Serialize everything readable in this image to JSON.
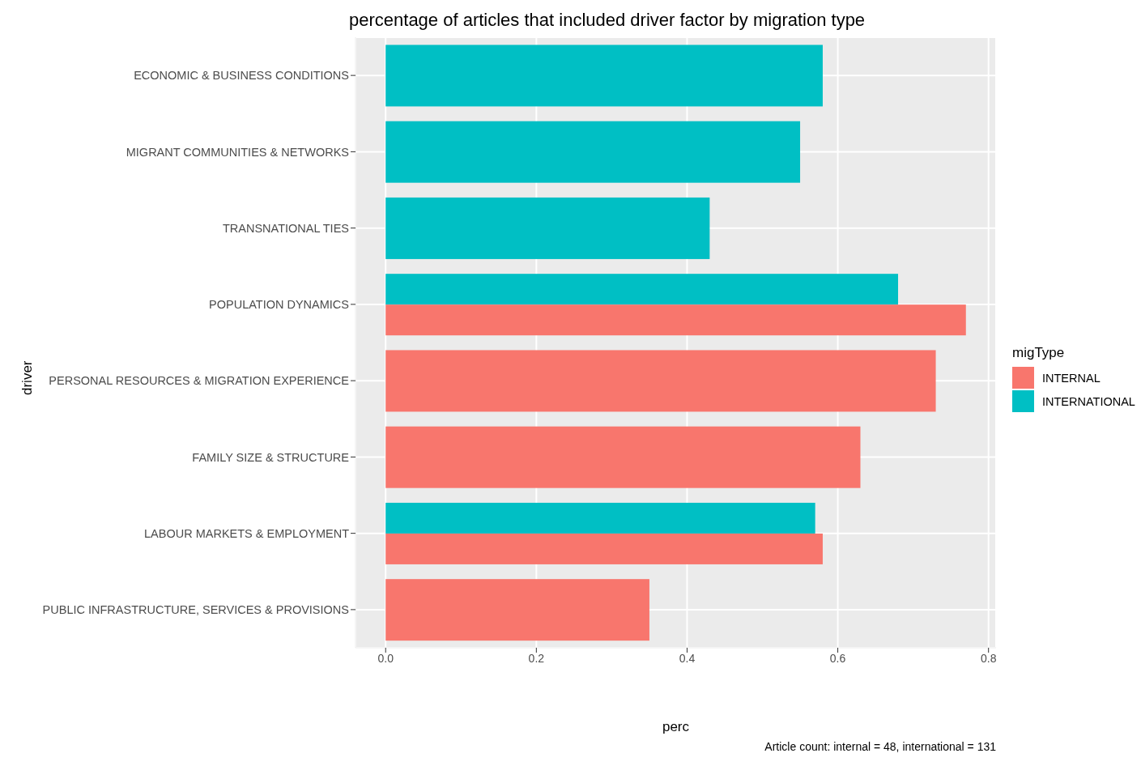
{
  "chart_data": {
    "type": "bar",
    "orientation": "horizontal",
    "title": "percentage of articles that included driver factor by migration type",
    "xlabel": "perc",
    "ylabel": "driver",
    "legend_title": "migType",
    "legend": "right",
    "categories": [
      "ECONOMIC & BUSINESS CONDITIONS",
      "MIGRANT COMMUNITIES & NETWORKS",
      "TRANSNATIONAL TIES",
      "POPULATION DYNAMICS",
      "PERSONAL RESOURCES & MIGRATION EXPERIENCE",
      "FAMILY SIZE & STRUCTURE",
      "LABOUR MARKETS & EMPLOYMENT",
      "PUBLIC INFRASTRUCTURE, SERVICES & PROVISIONS"
    ],
    "series": [
      {
        "name": "INTERNAL",
        "color": "#f8766d",
        "values": [
          null,
          null,
          null,
          0.77,
          0.73,
          0.63,
          0.58,
          0.35
        ]
      },
      {
        "name": "INTERNATIONAL",
        "color": "#00bfc4",
        "values": [
          0.58,
          0.55,
          0.43,
          0.68,
          null,
          null,
          0.57,
          null
        ]
      }
    ],
    "xlim": [
      -0.04,
      0.81
    ],
    "xticks": [
      {
        "value": 0,
        "label": "0.0"
      },
      {
        "value": 0.2,
        "label": "0.2"
      },
      {
        "value": 0.4,
        "label": "0.4"
      },
      {
        "value": 0.6,
        "label": "0.6"
      },
      {
        "value": 0.8,
        "label": "0.8"
      }
    ],
    "grid": true,
    "annotations": [
      "Article count: internal = 48, international = 131"
    ]
  }
}
